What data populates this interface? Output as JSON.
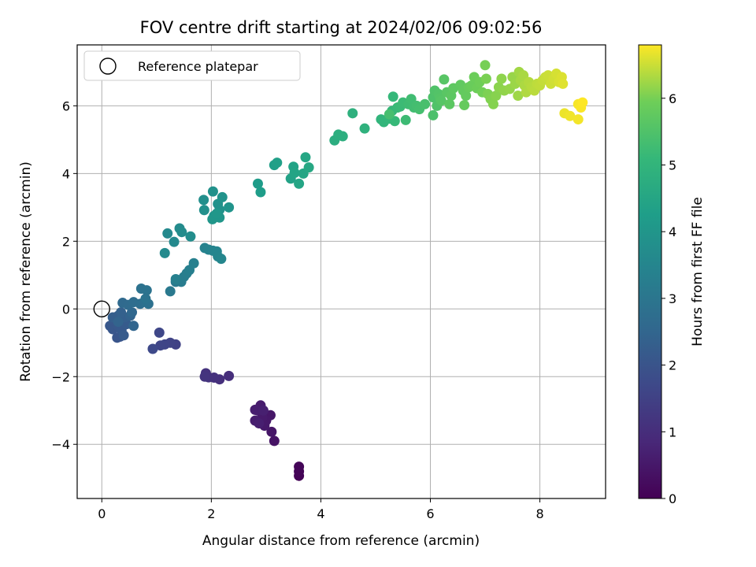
{
  "chart_data": {
    "type": "scatter",
    "title": "FOV centre drift starting at 2024/02/06 09:02:56",
    "xlabel": "Angular distance from reference (arcmin)",
    "ylabel": "Rotation from reference (arcmin)",
    "xlim": [
      -0.45,
      9.2
    ],
    "ylim": [
      -5.6,
      7.8
    ],
    "x_ticks": [
      0,
      2,
      4,
      6,
      8
    ],
    "y_ticks": [
      -4,
      -2,
      0,
      2,
      4,
      6
    ],
    "grid": true,
    "legend": {
      "position": "top-left",
      "entries": [
        "Reference platepar"
      ]
    },
    "reference_point": {
      "label": "Reference platepar",
      "x": 0,
      "y": 0
    },
    "colorbar": {
      "label": "Hours from first FF file",
      "range": [
        0,
        6.8
      ],
      "ticks": [
        0,
        1,
        2,
        3,
        4,
        5,
        6
      ],
      "colormap": "viridis"
    },
    "points": [
      {
        "x": 3.6,
        "y": -4.93,
        "c": 0.05
      },
      {
        "x": 3.6,
        "y": -4.8,
        "c": 0.08
      },
      {
        "x": 3.6,
        "y": -4.66,
        "c": 0.1
      },
      {
        "x": 3.15,
        "y": -3.9,
        "c": 0.4
      },
      {
        "x": 3.1,
        "y": -3.63,
        "c": 0.45
      },
      {
        "x": 3.08,
        "y": -3.14,
        "c": 0.48
      },
      {
        "x": 3.0,
        "y": -3.3,
        "c": 0.5
      },
      {
        "x": 2.97,
        "y": -3.45,
        "c": 0.52
      },
      {
        "x": 2.93,
        "y": -3.2,
        "c": 0.55
      },
      {
        "x": 2.9,
        "y": -2.85,
        "c": 0.58
      },
      {
        "x": 2.85,
        "y": -3.0,
        "c": 0.6
      },
      {
        "x": 2.8,
        "y": -3.3,
        "c": 0.62
      },
      {
        "x": 2.8,
        "y": -2.98,
        "c": 0.63
      },
      {
        "x": 2.87,
        "y": -3.38,
        "c": 0.65
      },
      {
        "x": 2.95,
        "y": -3.0,
        "c": 0.67
      },
      {
        "x": 2.32,
        "y": -1.98,
        "c": 1.0
      },
      {
        "x": 2.15,
        "y": -2.08,
        "c": 1.05
      },
      {
        "x": 2.05,
        "y": -2.03,
        "c": 1.08
      },
      {
        "x": 1.95,
        "y": -2.02,
        "c": 1.1
      },
      {
        "x": 1.9,
        "y": -1.9,
        "c": 1.12
      },
      {
        "x": 1.88,
        "y": -2.0,
        "c": 1.15
      },
      {
        "x": 1.35,
        "y": -1.05,
        "c": 1.5
      },
      {
        "x": 1.25,
        "y": -1.0,
        "c": 1.55
      },
      {
        "x": 1.15,
        "y": -1.05,
        "c": 1.58
      },
      {
        "x": 1.07,
        "y": -1.08,
        "c": 1.6
      },
      {
        "x": 1.05,
        "y": -0.7,
        "c": 1.65
      },
      {
        "x": 0.93,
        "y": -1.18,
        "c": 1.7
      },
      {
        "x": 0.33,
        "y": -0.82,
        "c": 2.0
      },
      {
        "x": 0.28,
        "y": -0.85,
        "c": 2.03
      },
      {
        "x": 0.2,
        "y": -0.6,
        "c": 2.05
      },
      {
        "x": 0.15,
        "y": -0.5,
        "c": 2.08
      },
      {
        "x": 0.23,
        "y": -0.35,
        "c": 2.1
      },
      {
        "x": 0.3,
        "y": -0.5,
        "c": 2.12
      },
      {
        "x": 0.36,
        "y": -0.62,
        "c": 2.15
      },
      {
        "x": 0.4,
        "y": -0.78,
        "c": 2.18
      },
      {
        "x": 0.45,
        "y": -0.45,
        "c": 2.2
      },
      {
        "x": 0.3,
        "y": -0.2,
        "c": 2.25
      },
      {
        "x": 0.2,
        "y": -0.25,
        "c": 2.28
      },
      {
        "x": 0.42,
        "y": -0.25,
        "c": 2.3
      },
      {
        "x": 0.35,
        "y": -0.1,
        "c": 2.35
      },
      {
        "x": 0.52,
        "y": -0.2,
        "c": 2.4
      },
      {
        "x": 0.3,
        "y": -0.38,
        "c": 2.45
      },
      {
        "x": 0.58,
        "y": -0.5,
        "c": 2.5
      },
      {
        "x": 0.55,
        "y": -0.1,
        "c": 2.55
      },
      {
        "x": 0.38,
        "y": 0.18,
        "c": 2.6
      },
      {
        "x": 0.48,
        "y": 0.12,
        "c": 2.65
      },
      {
        "x": 0.58,
        "y": 0.2,
        "c": 2.7
      },
      {
        "x": 0.7,
        "y": 0.15,
        "c": 2.75
      },
      {
        "x": 0.78,
        "y": 0.22,
        "c": 2.8
      },
      {
        "x": 0.85,
        "y": 0.15,
        "c": 2.85
      },
      {
        "x": 0.72,
        "y": 0.6,
        "c": 2.88
      },
      {
        "x": 0.82,
        "y": 0.55,
        "c": 2.9
      },
      {
        "x": 0.8,
        "y": 0.3,
        "c": 2.92
      },
      {
        "x": 1.25,
        "y": 0.52,
        "c": 3.1
      },
      {
        "x": 1.35,
        "y": 0.8,
        "c": 3.15
      },
      {
        "x": 1.4,
        "y": 0.85,
        "c": 3.2
      },
      {
        "x": 1.45,
        "y": 0.8,
        "c": 3.22
      },
      {
        "x": 1.5,
        "y": 0.95,
        "c": 3.25
      },
      {
        "x": 1.55,
        "y": 1.05,
        "c": 3.28
      },
      {
        "x": 1.6,
        "y": 1.15,
        "c": 3.3
      },
      {
        "x": 1.68,
        "y": 1.35,
        "c": 3.32
      },
      {
        "x": 1.35,
        "y": 0.88,
        "c": 3.35
      },
      {
        "x": 1.88,
        "y": 1.8,
        "c": 3.4
      },
      {
        "x": 1.95,
        "y": 1.75,
        "c": 3.42
      },
      {
        "x": 2.03,
        "y": 1.72,
        "c": 3.45
      },
      {
        "x": 2.1,
        "y": 1.7,
        "c": 3.48
      },
      {
        "x": 2.12,
        "y": 1.55,
        "c": 3.5
      },
      {
        "x": 2.18,
        "y": 1.48,
        "c": 3.52
      },
      {
        "x": 1.2,
        "y": 2.23,
        "c": 3.6
      },
      {
        "x": 1.32,
        "y": 1.98,
        "c": 3.62
      },
      {
        "x": 1.15,
        "y": 1.65,
        "c": 3.65
      },
      {
        "x": 1.42,
        "y": 2.38,
        "c": 3.68
      },
      {
        "x": 1.46,
        "y": 2.27,
        "c": 3.7
      },
      {
        "x": 1.62,
        "y": 2.14,
        "c": 3.72
      },
      {
        "x": 1.86,
        "y": 3.22,
        "c": 3.8
      },
      {
        "x": 1.87,
        "y": 2.92,
        "c": 3.82
      },
      {
        "x": 2.03,
        "y": 3.47,
        "c": 3.85
      },
      {
        "x": 2.12,
        "y": 3.1,
        "c": 3.88
      },
      {
        "x": 2.15,
        "y": 2.93,
        "c": 3.9
      },
      {
        "x": 2.2,
        "y": 3.3,
        "c": 3.92
      },
      {
        "x": 2.32,
        "y": 3.0,
        "c": 3.95
      },
      {
        "x": 2.05,
        "y": 2.75,
        "c": 3.97
      },
      {
        "x": 2.02,
        "y": 2.65,
        "c": 4.0
      },
      {
        "x": 2.15,
        "y": 2.7,
        "c": 4.02
      },
      {
        "x": 2.1,
        "y": 2.82,
        "c": 4.03
      },
      {
        "x": 2.85,
        "y": 3.7,
        "c": 4.2
      },
      {
        "x": 2.9,
        "y": 3.45,
        "c": 4.22
      },
      {
        "x": 3.15,
        "y": 4.25,
        "c": 4.3
      },
      {
        "x": 3.2,
        "y": 4.32,
        "c": 4.32
      },
      {
        "x": 3.45,
        "y": 3.85,
        "c": 4.4
      },
      {
        "x": 3.5,
        "y": 4.2,
        "c": 4.42
      },
      {
        "x": 3.52,
        "y": 4.02,
        "c": 4.45
      },
      {
        "x": 3.6,
        "y": 3.7,
        "c": 4.48
      },
      {
        "x": 3.68,
        "y": 4.0,
        "c": 4.5
      },
      {
        "x": 3.72,
        "y": 4.48,
        "c": 4.52
      },
      {
        "x": 3.78,
        "y": 4.18,
        "c": 4.55
      },
      {
        "x": 4.25,
        "y": 4.98,
        "c": 4.75
      },
      {
        "x": 4.32,
        "y": 5.15,
        "c": 4.78
      },
      {
        "x": 4.4,
        "y": 5.1,
        "c": 4.8
      },
      {
        "x": 4.58,
        "y": 5.78,
        "c": 4.85
      },
      {
        "x": 4.8,
        "y": 5.33,
        "c": 4.9
      },
      {
        "x": 5.1,
        "y": 5.6,
        "c": 5.0
      },
      {
        "x": 5.15,
        "y": 5.52,
        "c": 5.02
      },
      {
        "x": 5.25,
        "y": 5.62,
        "c": 5.05
      },
      {
        "x": 5.3,
        "y": 5.85,
        "c": 5.08
      },
      {
        "x": 5.32,
        "y": 6.27,
        "c": 5.1
      },
      {
        "x": 5.35,
        "y": 5.55,
        "c": 5.12
      },
      {
        "x": 5.4,
        "y": 5.95,
        "c": 5.15
      },
      {
        "x": 5.45,
        "y": 5.98,
        "c": 5.18
      },
      {
        "x": 5.5,
        "y": 6.1,
        "c": 5.2
      },
      {
        "x": 5.55,
        "y": 5.58,
        "c": 5.22
      },
      {
        "x": 5.6,
        "y": 6.05,
        "c": 5.25
      },
      {
        "x": 5.65,
        "y": 6.2,
        "c": 5.28
      },
      {
        "x": 5.7,
        "y": 5.95,
        "c": 5.3
      },
      {
        "x": 5.75,
        "y": 6.0,
        "c": 5.32
      },
      {
        "x": 5.8,
        "y": 5.9,
        "c": 5.35
      },
      {
        "x": 5.25,
        "y": 5.75,
        "c": 5.37
      },
      {
        "x": 5.9,
        "y": 6.05,
        "c": 5.4
      },
      {
        "x": 6.05,
        "y": 5.72,
        "c": 5.45
      },
      {
        "x": 6.05,
        "y": 6.25,
        "c": 5.48
      },
      {
        "x": 6.08,
        "y": 6.45,
        "c": 5.5
      },
      {
        "x": 6.12,
        "y": 6.0,
        "c": 5.52
      },
      {
        "x": 6.15,
        "y": 6.35,
        "c": 5.55
      },
      {
        "x": 6.18,
        "y": 6.22,
        "c": 5.58
      },
      {
        "x": 6.2,
        "y": 6.15,
        "c": 5.6
      },
      {
        "x": 6.25,
        "y": 6.78,
        "c": 5.62
      },
      {
        "x": 6.3,
        "y": 6.4,
        "c": 5.65
      },
      {
        "x": 6.35,
        "y": 6.05,
        "c": 5.68
      },
      {
        "x": 6.38,
        "y": 6.3,
        "c": 5.7
      },
      {
        "x": 6.42,
        "y": 6.52,
        "c": 5.72
      },
      {
        "x": 6.55,
        "y": 6.62,
        "c": 5.75
      },
      {
        "x": 6.6,
        "y": 6.45,
        "c": 5.78
      },
      {
        "x": 6.65,
        "y": 6.3,
        "c": 5.8
      },
      {
        "x": 6.62,
        "y": 6.02,
        "c": 5.82
      },
      {
        "x": 6.7,
        "y": 6.55,
        "c": 5.85
      },
      {
        "x": 6.75,
        "y": 6.6,
        "c": 5.88
      },
      {
        "x": 6.8,
        "y": 6.85,
        "c": 5.9
      },
      {
        "x": 6.85,
        "y": 6.52,
        "c": 5.92
      },
      {
        "x": 6.9,
        "y": 6.7,
        "c": 5.95
      },
      {
        "x": 6.95,
        "y": 6.4,
        "c": 5.97
      },
      {
        "x": 7.0,
        "y": 7.2,
        "c": 6.0
      },
      {
        "x": 7.02,
        "y": 6.8,
        "c": 6.02
      },
      {
        "x": 7.05,
        "y": 6.35,
        "c": 6.04
      },
      {
        "x": 7.1,
        "y": 6.2,
        "c": 6.06
      },
      {
        "x": 7.15,
        "y": 6.05,
        "c": 6.08
      },
      {
        "x": 7.2,
        "y": 6.3,
        "c": 6.1
      },
      {
        "x": 7.25,
        "y": 6.55,
        "c": 6.12
      },
      {
        "x": 7.3,
        "y": 6.8,
        "c": 6.14
      },
      {
        "x": 7.35,
        "y": 6.45,
        "c": 6.16
      },
      {
        "x": 7.45,
        "y": 6.5,
        "c": 6.18
      },
      {
        "x": 7.5,
        "y": 6.85,
        "c": 6.2
      },
      {
        "x": 7.55,
        "y": 6.65,
        "c": 6.22
      },
      {
        "x": 7.6,
        "y": 6.3,
        "c": 6.24
      },
      {
        "x": 7.62,
        "y": 7.0,
        "c": 6.26
      },
      {
        "x": 7.65,
        "y": 6.75,
        "c": 6.28
      },
      {
        "x": 7.7,
        "y": 6.9,
        "c": 6.3
      },
      {
        "x": 7.72,
        "y": 6.6,
        "c": 6.32
      },
      {
        "x": 7.75,
        "y": 6.4,
        "c": 6.34
      },
      {
        "x": 7.8,
        "y": 6.7,
        "c": 6.36
      },
      {
        "x": 7.85,
        "y": 6.55,
        "c": 6.38
      },
      {
        "x": 7.9,
        "y": 6.45,
        "c": 6.4
      },
      {
        "x": 7.95,
        "y": 6.65,
        "c": 6.42
      },
      {
        "x": 8.0,
        "y": 6.6,
        "c": 6.44
      },
      {
        "x": 8.05,
        "y": 6.75,
        "c": 6.46
      },
      {
        "x": 8.1,
        "y": 6.85,
        "c": 6.48
      },
      {
        "x": 8.15,
        "y": 6.9,
        "c": 6.5
      },
      {
        "x": 8.2,
        "y": 6.65,
        "c": 6.52
      },
      {
        "x": 8.25,
        "y": 6.8,
        "c": 6.54
      },
      {
        "x": 8.3,
        "y": 6.95,
        "c": 6.56
      },
      {
        "x": 8.35,
        "y": 6.7,
        "c": 6.58
      },
      {
        "x": 8.4,
        "y": 6.85,
        "c": 6.6
      },
      {
        "x": 8.42,
        "y": 6.65,
        "c": 6.62
      },
      {
        "x": 8.45,
        "y": 5.78,
        "c": 6.7
      },
      {
        "x": 8.55,
        "y": 5.7,
        "c": 6.72
      },
      {
        "x": 8.7,
        "y": 5.6,
        "c": 6.74
      },
      {
        "x": 8.7,
        "y": 6.05,
        "c": 6.76
      },
      {
        "x": 8.75,
        "y": 5.95,
        "c": 6.78
      },
      {
        "x": 8.78,
        "y": 6.1,
        "c": 6.8
      }
    ]
  }
}
